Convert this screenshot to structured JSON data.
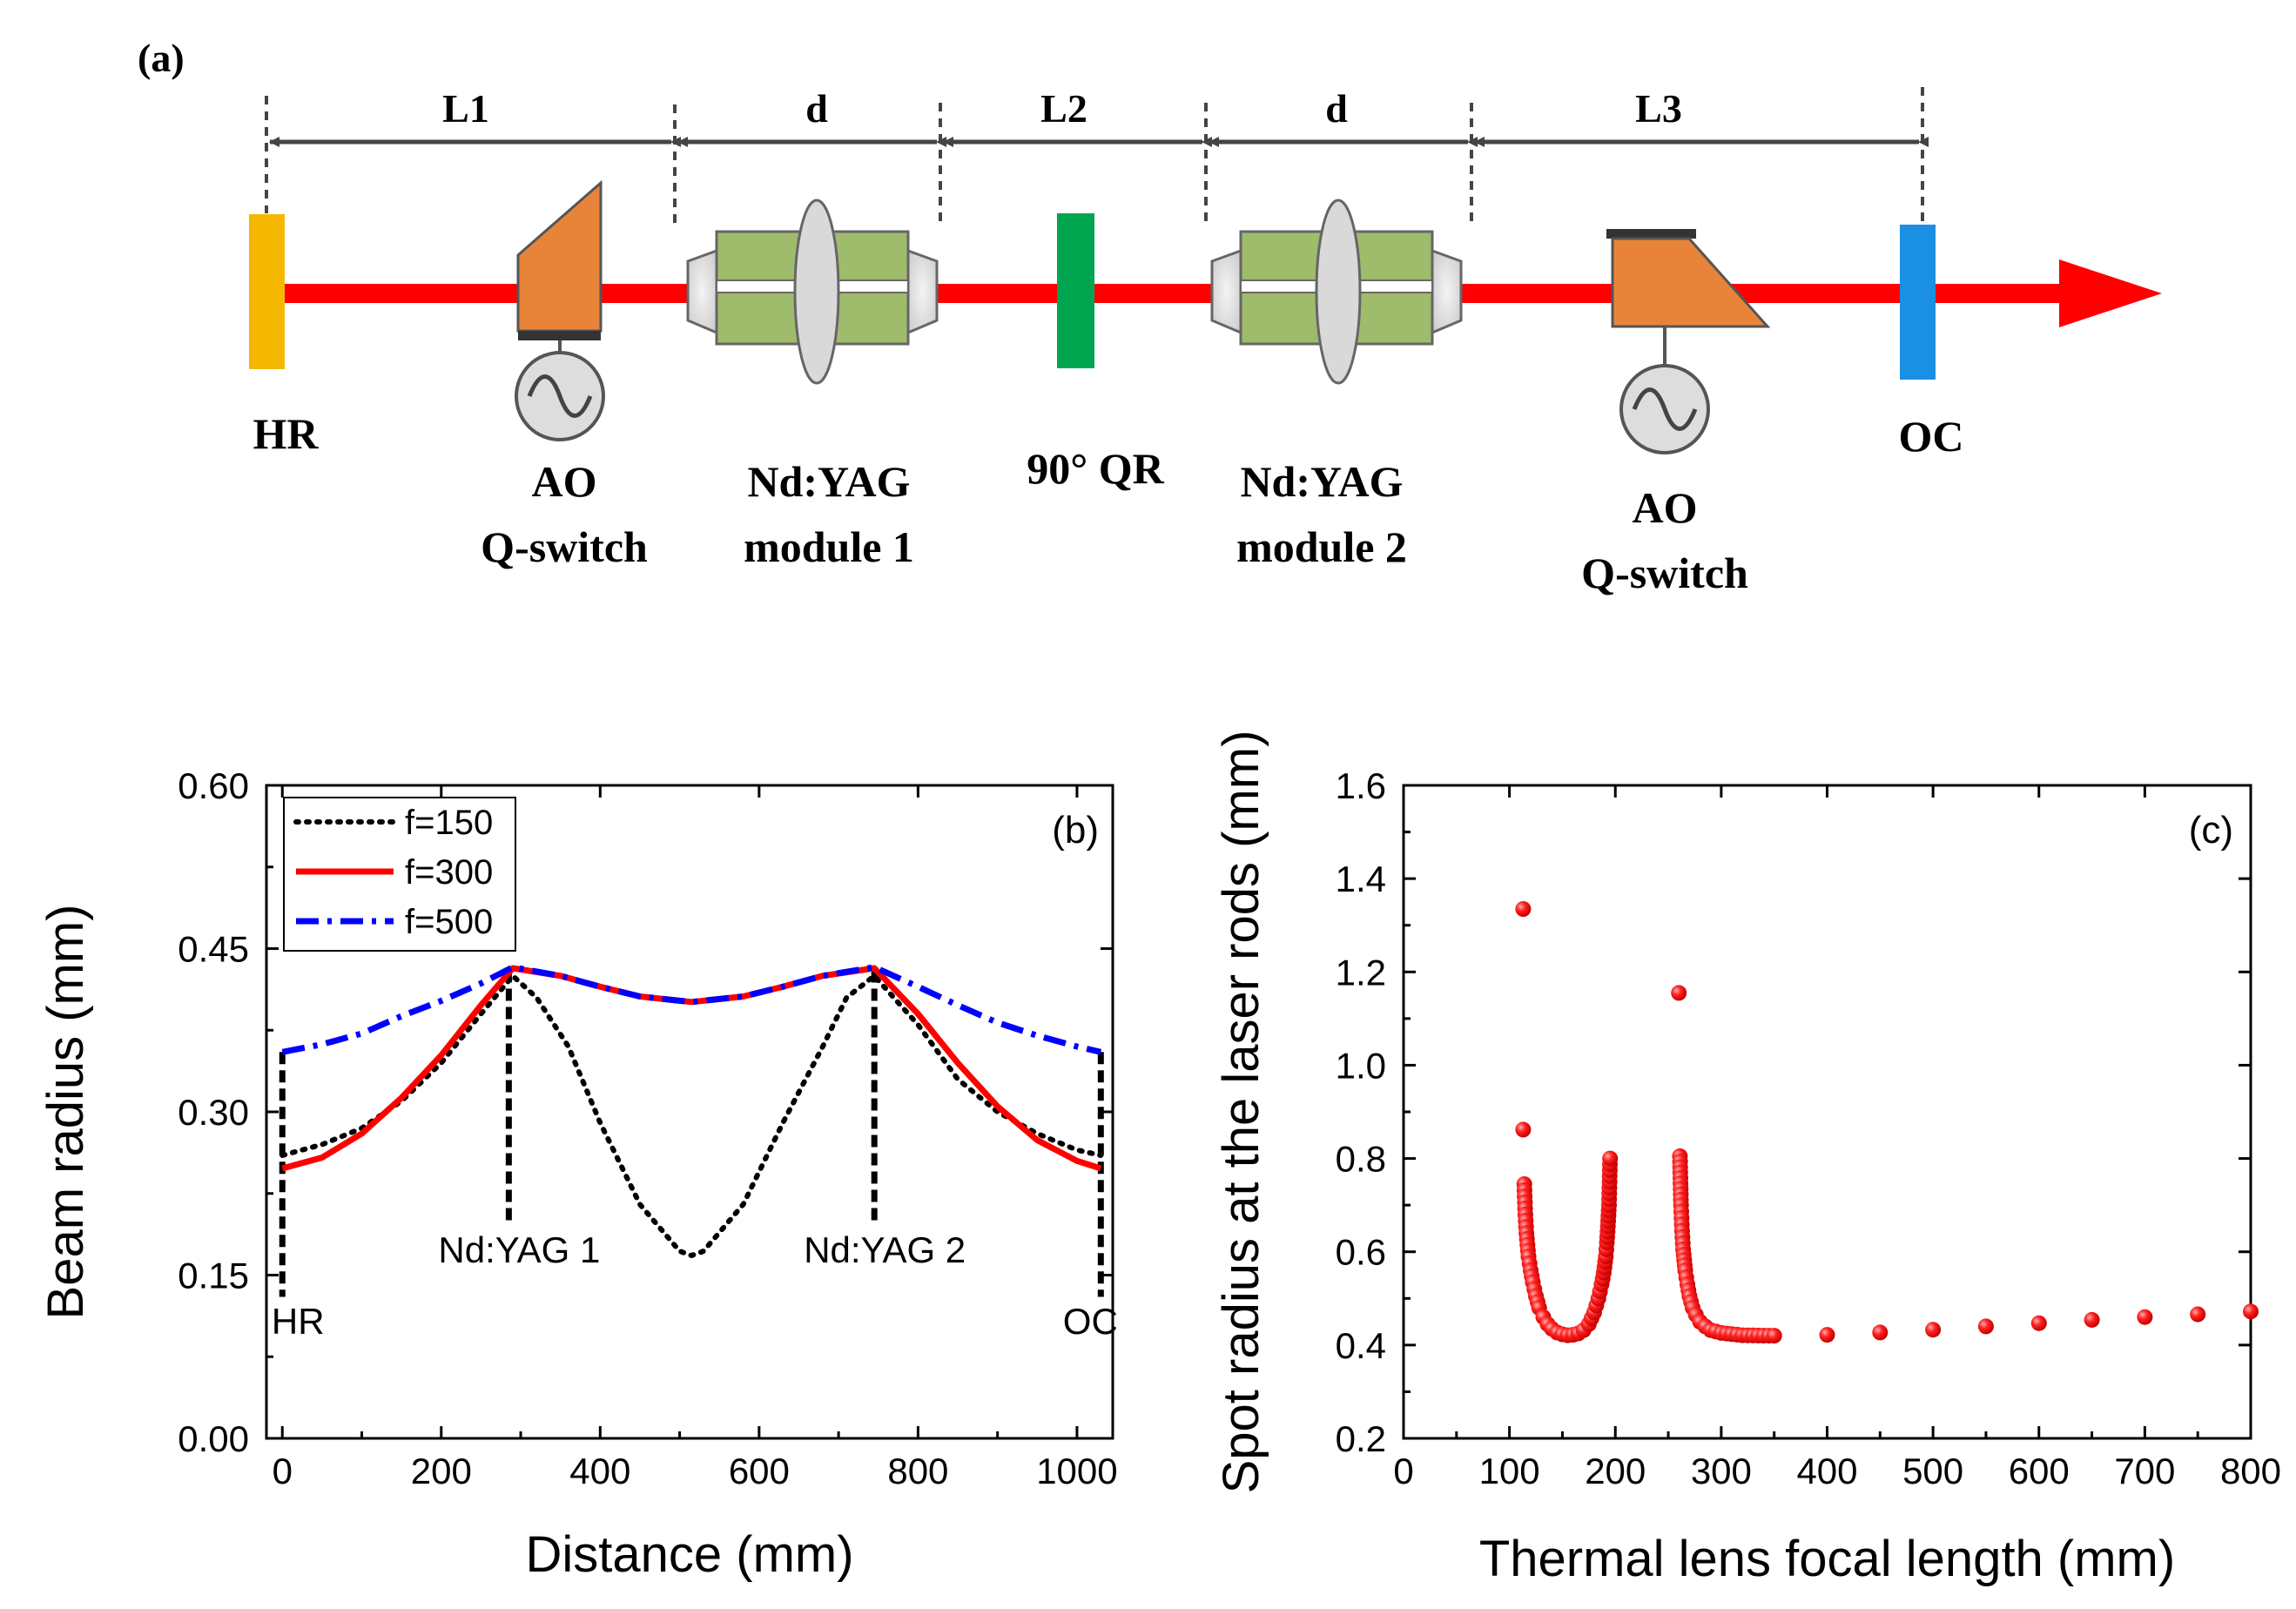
{
  "diagram": {
    "panel_label": "(a)",
    "spans": [
      "L1",
      "d",
      "L2",
      "d",
      "L3"
    ],
    "components": {
      "hr": [
        "HR"
      ],
      "aoqs1": [
        "AO",
        "Q-switch"
      ],
      "mod1": [
        "Nd:YAG",
        "module 1"
      ],
      "qr": [
        "90° QR"
      ],
      "mod2": [
        "Nd:YAG",
        "module 2"
      ],
      "aoqs2": [
        "AO",
        "Q-switch"
      ],
      "oc": [
        "OC"
      ]
    },
    "colors": {
      "beam": "#ff0000",
      "hr": "#f5b800",
      "qswitch": "#e8843a",
      "module": "#9fbb6c",
      "qr": "#00a550",
      "oc": "#1a8fe3",
      "arrow": "#444444"
    }
  },
  "chart_data": [
    {
      "type": "line",
      "panel_label": "(b)",
      "title": "",
      "xlabel": "Distance (mm)",
      "ylabel": "Beam radius (mm)",
      "xlim": [
        -20,
        1045
      ],
      "ylim": [
        0.0,
        0.6
      ],
      "xticks": [
        0,
        200,
        400,
        600,
        800,
        1000
      ],
      "yticks": [
        0.0,
        0.15,
        0.3,
        0.45,
        0.6
      ],
      "ytick_labels": [
        "0.00",
        "0.15",
        "0.30",
        "0.45",
        "0.60"
      ],
      "legend_position": "top-left",
      "series": [
        {
          "name": "f=150",
          "color": "#000000",
          "style": "dotted",
          "x": [
            0,
            50,
            100,
            150,
            200,
            250,
            290,
            320,
            360,
            400,
            450,
            500,
            515,
            530,
            580,
            630,
            680,
            710,
            745,
            800,
            850,
            900,
            950,
            1000,
            1030
          ],
          "y": [
            0.26,
            0.27,
            0.285,
            0.31,
            0.345,
            0.39,
            0.425,
            0.405,
            0.36,
            0.29,
            0.215,
            0.172,
            0.168,
            0.172,
            0.215,
            0.29,
            0.36,
            0.405,
            0.425,
            0.38,
            0.33,
            0.3,
            0.28,
            0.265,
            0.26
          ]
        },
        {
          "name": "f=300",
          "color": "#ff0000",
          "style": "solid",
          "x": [
            0,
            50,
            100,
            150,
            200,
            250,
            290,
            350,
            400,
            450,
            515,
            580,
            630,
            680,
            745,
            800,
            850,
            900,
            950,
            1000,
            1030
          ],
          "y": [
            0.248,
            0.258,
            0.28,
            0.313,
            0.352,
            0.398,
            0.432,
            0.425,
            0.415,
            0.406,
            0.401,
            0.406,
            0.415,
            0.425,
            0.432,
            0.39,
            0.345,
            0.305,
            0.274,
            0.255,
            0.248
          ]
        },
        {
          "name": "f=500",
          "color": "#0000ff",
          "style": "dashdot",
          "x": [
            0,
            50,
            100,
            150,
            200,
            250,
            290,
            350,
            400,
            450,
            515,
            580,
            630,
            680,
            745,
            800,
            850,
            900,
            950,
            1000,
            1030
          ],
          "y": [
            0.355,
            0.362,
            0.372,
            0.388,
            0.402,
            0.418,
            0.433,
            0.425,
            0.415,
            0.406,
            0.401,
            0.406,
            0.415,
            0.425,
            0.433,
            0.415,
            0.398,
            0.382,
            0.37,
            0.36,
            0.355
          ]
        }
      ],
      "markers": [
        {
          "label": "HR",
          "x": 0,
          "y_top": 0.355
        },
        {
          "label": "Nd:YAG 1",
          "x": 285,
          "y_top": 0.43
        },
        {
          "label": "Nd:YAG 2",
          "x": 745,
          "y_top": 0.43
        },
        {
          "label": "OC",
          "x": 1030,
          "y_top": 0.355
        }
      ]
    },
    {
      "type": "scatter",
      "panel_label": "(c)",
      "title": "",
      "xlabel": "Thermal lens focal length (mm)",
      "ylabel": "Spot radius at  the laser rods (mm)",
      "xlim": [
        0,
        800
      ],
      "ylim": [
        0.2,
        1.6
      ],
      "xticks": [
        0,
        100,
        200,
        300,
        400,
        500,
        600,
        700,
        800
      ],
      "yticks": [
        0.2,
        0.4,
        0.6,
        0.8,
        1.0,
        1.2,
        1.4,
        1.6
      ],
      "ytick_labels": [
        "0.2",
        "0.4",
        "0.6",
        "0.8",
        "1.0",
        "1.2",
        "1.4",
        "1.6"
      ],
      "series": [
        {
          "name": "spot radius",
          "color": "#ff0000",
          "x": [
            113,
            113,
            114,
            115,
            116,
            117,
            118,
            120,
            122,
            125,
            128,
            132,
            136,
            140,
            145,
            150,
            155,
            160,
            165,
            170,
            175,
            180,
            184,
            187,
            189,
            191,
            192,
            193,
            194,
            195,
            260,
            261,
            262,
            263,
            264,
            266,
            268,
            270,
            273,
            276,
            280,
            285,
            290,
            300,
            320,
            350,
            400,
            450,
            500,
            550,
            600,
            650,
            700,
            750,
            800
          ],
          "y": [
            1.335,
            0.862,
            0.745,
            0.68,
            0.64,
            0.615,
            0.59,
            0.56,
            0.535,
            0.505,
            0.48,
            0.46,
            0.445,
            0.435,
            0.427,
            0.423,
            0.421,
            0.422,
            0.425,
            0.432,
            0.445,
            0.47,
            0.5,
            0.53,
            0.555,
            0.59,
            0.62,
            0.655,
            0.7,
            0.8,
            1.155,
            0.805,
            0.7,
            0.645,
            0.605,
            0.56,
            0.53,
            0.505,
            0.48,
            0.465,
            0.45,
            0.44,
            0.432,
            0.426,
            0.421,
            0.42,
            0.422,
            0.427,
            0.433,
            0.44,
            0.447,
            0.454,
            0.46,
            0.466,
            0.472
          ]
        }
      ]
    }
  ]
}
